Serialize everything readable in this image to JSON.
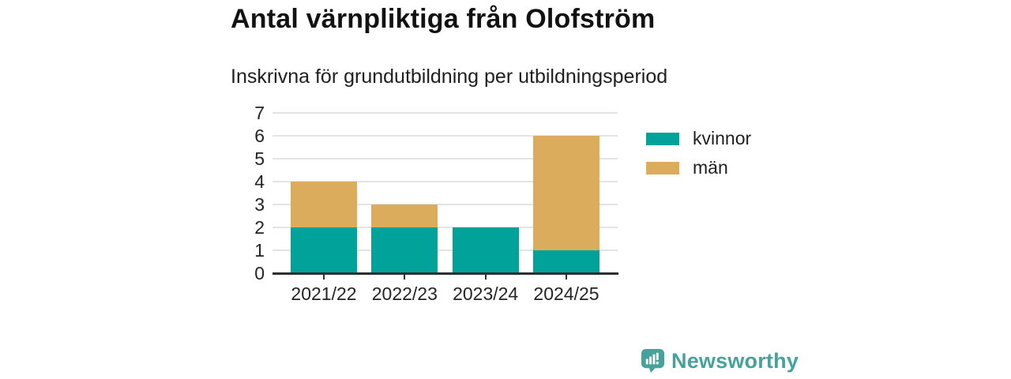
{
  "title": "Antal värnpliktiga från Olofström",
  "subtitle": "Inskrivna för grundutbildning per utbildningsperiod",
  "chart_data": {
    "type": "bar",
    "stacked": true,
    "categories": [
      "2021/22",
      "2022/23",
      "2023/24",
      "2024/25"
    ],
    "series": [
      {
        "name": "kvinnor",
        "color": "#00a29a",
        "values": [
          2,
          2,
          2,
          1
        ]
      },
      {
        "name": "män",
        "color": "#daac5c",
        "values": [
          2,
          1,
          0,
          5
        ]
      }
    ],
    "totals": [
      4,
      3,
      2,
      6
    ],
    "ylim": [
      0,
      7
    ],
    "yticks": [
      0,
      1,
      2,
      3,
      4,
      5,
      6,
      7
    ],
    "xlabel": "",
    "ylabel": "",
    "grid": true,
    "legend_position": "right"
  },
  "colors": {
    "kvinnor": "#00a29a",
    "man": "#daac5c",
    "gridline": "#e4e4e4",
    "axis": "#2e2e2e",
    "logo_teal": "#47a29b"
  },
  "branding": {
    "logo_text": "Newsworthy",
    "logo_icon": "newsworthy-speech-bubble-bar-chart-icon"
  }
}
